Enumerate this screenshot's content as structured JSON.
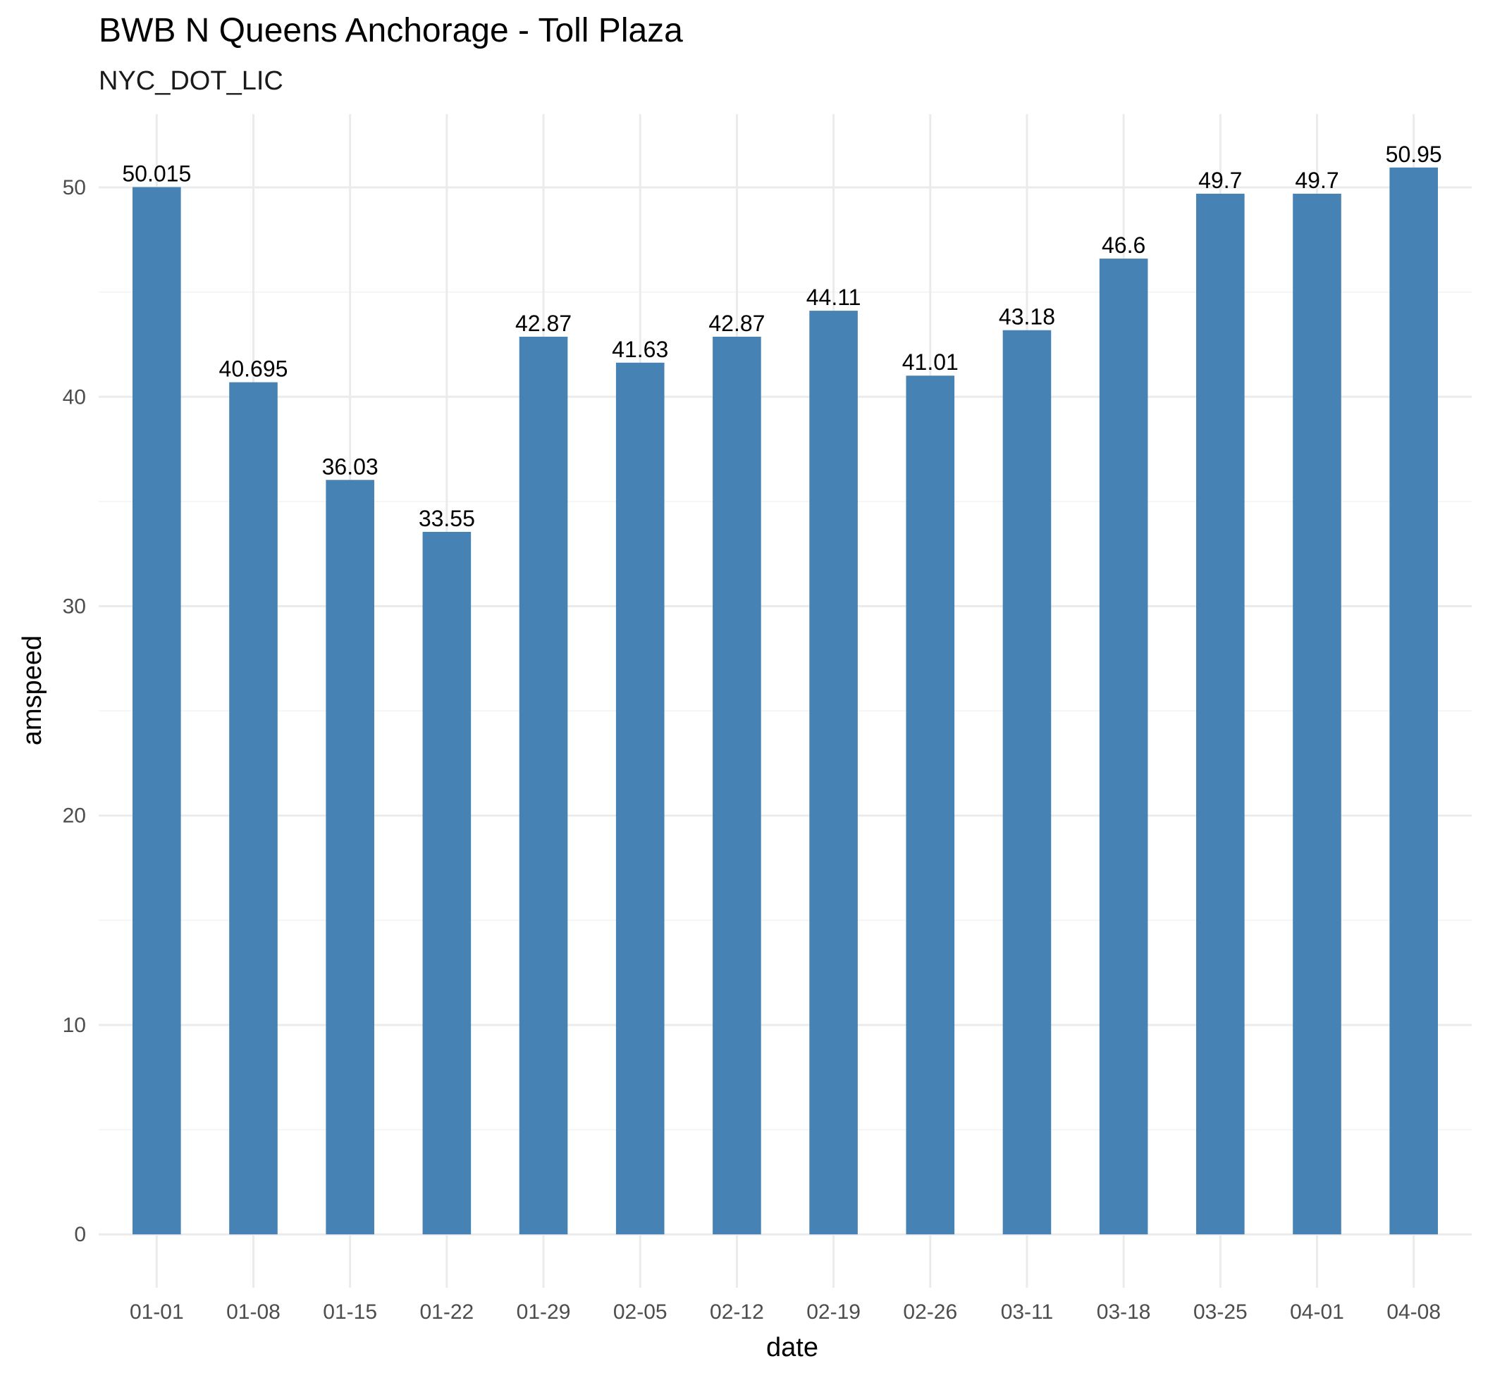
{
  "chart_data": {
    "type": "bar",
    "title": "BWB N Queens Anchorage - Toll Plaza",
    "subtitle": "NYC_DOT_LIC",
    "xlabel": "date",
    "ylabel": "amspeed",
    "categories": [
      "01-01",
      "01-08",
      "01-15",
      "01-22",
      "01-29",
      "02-05",
      "02-12",
      "02-19",
      "02-26",
      "03-11",
      "03-18",
      "03-25",
      "04-01",
      "04-08"
    ],
    "values": [
      50.015,
      40.695,
      36.03,
      33.55,
      42.87,
      41.63,
      42.87,
      44.11,
      41.01,
      43.18,
      46.6,
      49.7,
      49.7,
      50.95
    ],
    "data_labels": [
      "50.015",
      "40.695",
      "36.03",
      "33.55",
      "42.87",
      "41.63",
      "42.87",
      "44.11",
      "41.01",
      "43.18",
      "46.6",
      "49.7",
      "49.7",
      "50.95"
    ],
    "ylim": [
      -2.55,
      53.5
    ],
    "yticks": [
      0,
      10,
      20,
      30,
      40,
      50
    ],
    "grid": true,
    "bar_color": "#4682b4"
  }
}
